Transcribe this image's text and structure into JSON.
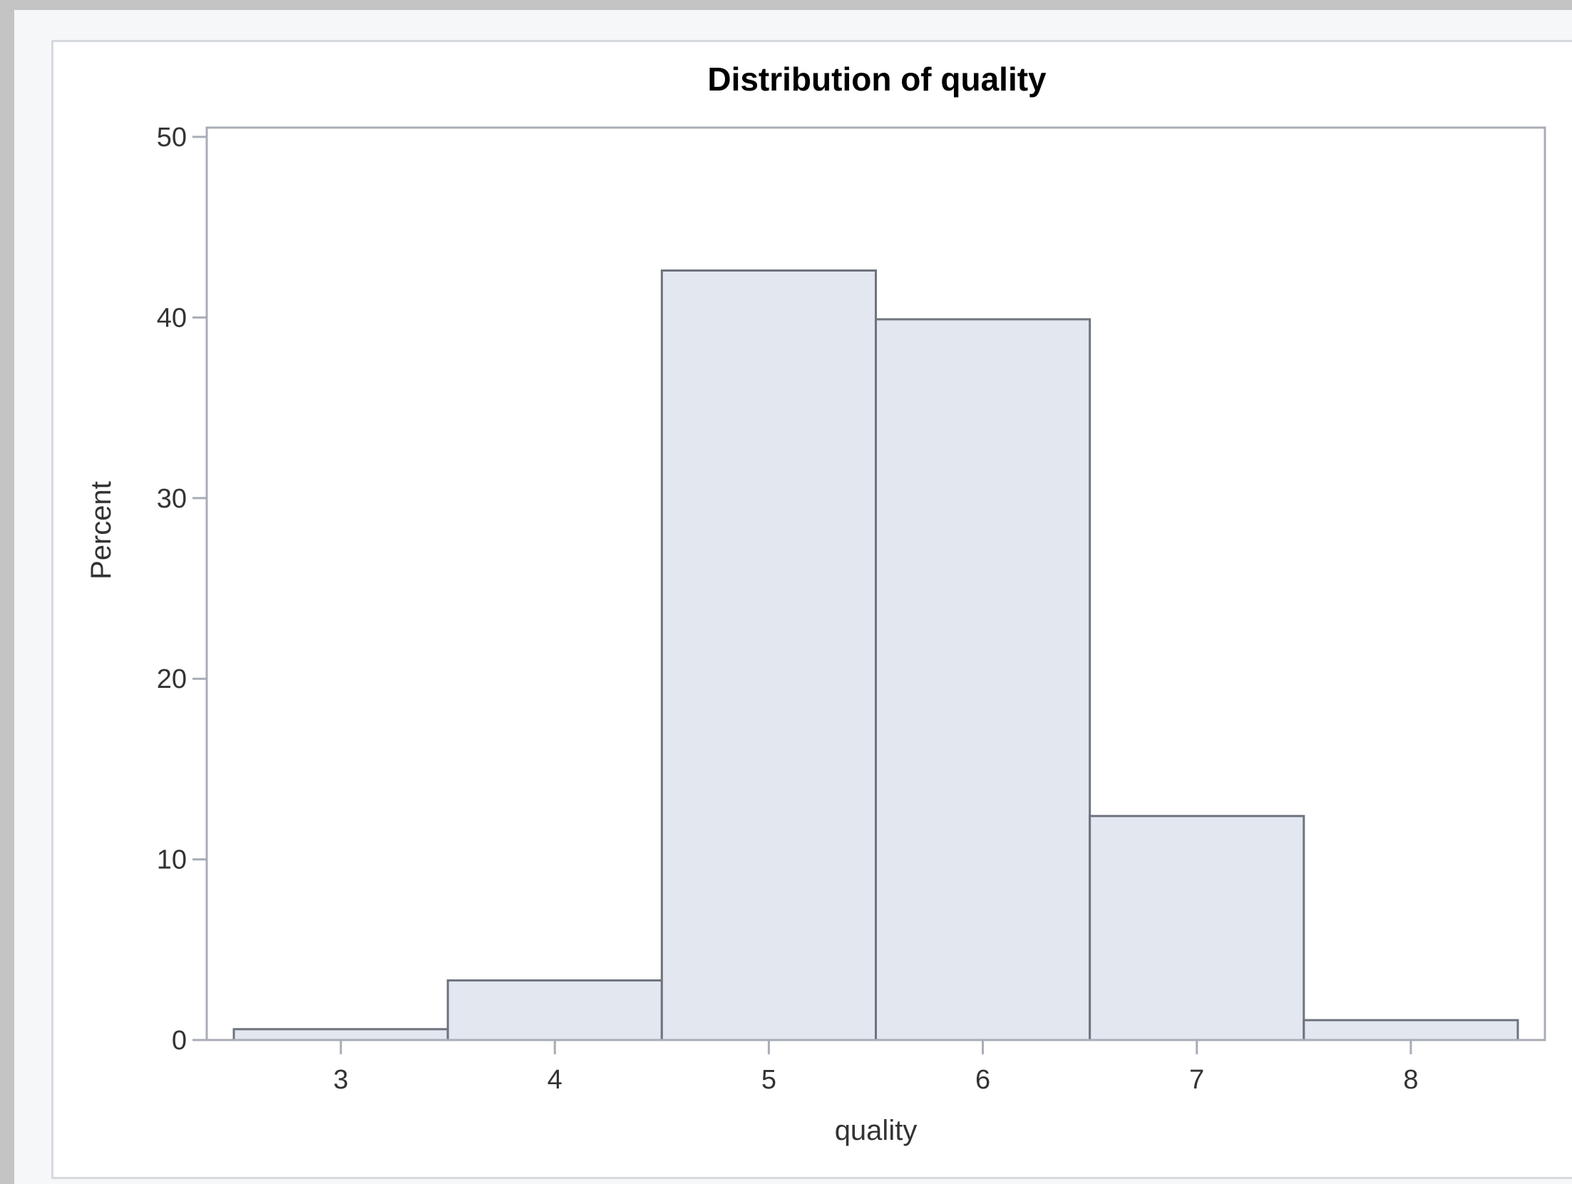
{
  "chart_data": {
    "type": "bar",
    "title": "Distribution of quality",
    "xlabel": "quality",
    "ylabel": "Percent",
    "categories": [
      "3",
      "4",
      "5",
      "6",
      "7",
      "8"
    ],
    "values": [
      0.6,
      3.3,
      42.6,
      39.9,
      12.4,
      1.1
    ],
    "ylim": [
      0,
      50
    ],
    "yticks": [
      "0",
      "10",
      "20",
      "30",
      "40",
      "50"
    ],
    "grid": false,
    "colors": {
      "bar_fill": "#e2e7f0",
      "bar_edge": "#6e737d",
      "frame": "#a8adb6"
    }
  }
}
